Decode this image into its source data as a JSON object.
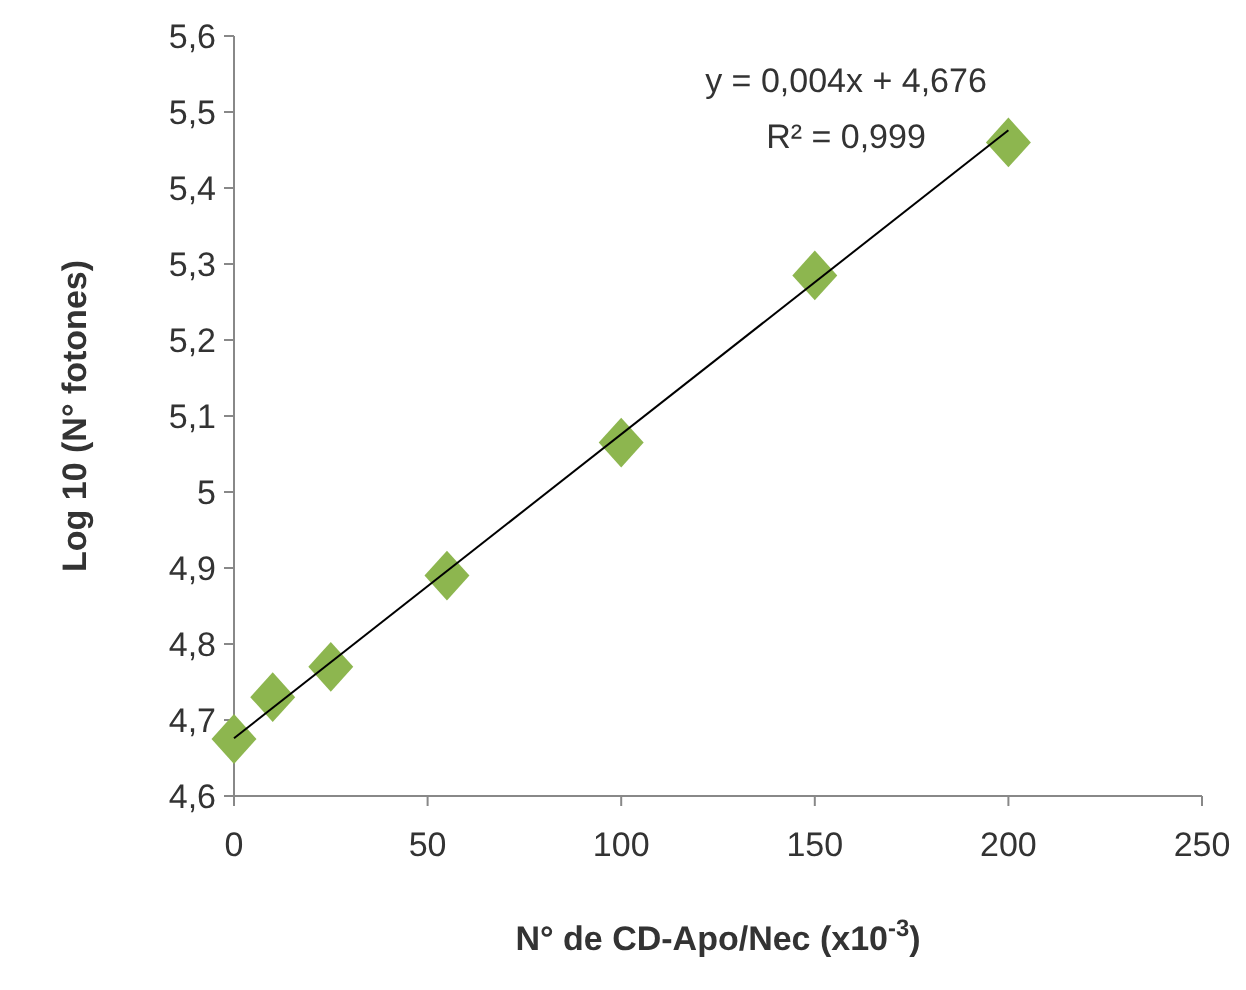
{
  "chart_data": {
    "type": "scatter",
    "xlabel": "N° de CD-Apo/Nec (x10$^{-3}$)",
    "ylabel": "Log 10 (N° fotones)",
    "x": [
      0,
      10,
      25,
      55,
      100,
      150,
      200
    ],
    "series": [
      {
        "color": "#8db64f",
        "marker": "diamond",
        "values": [
          4.675,
          4.73,
          4.77,
          4.89,
          5.065,
          5.285,
          5.46
        ]
      },
      {
        "type": "line",
        "color": "#000000",
        "x": [
          0,
          200
        ],
        "values": [
          4.676,
          5.476
        ]
      }
    ],
    "xlim": [
      0,
      250
    ],
    "xticks": [
      0,
      50,
      100,
      150,
      200,
      250
    ],
    "ylim": [
      4.6,
      5.6
    ],
    "yticks": [
      {
        "value": 4.6,
        "label": "4,6"
      },
      {
        "value": 4.7,
        "label": "4,7"
      },
      {
        "value": 4.8,
        "label": "4,8"
      },
      {
        "value": 4.9,
        "label": "4,9"
      },
      5,
      {
        "value": 5.1,
        "label": "5,1"
      },
      {
        "value": 5.2,
        "label": "5,2"
      },
      {
        "value": 5.3,
        "label": "5,3"
      },
      {
        "value": 5.4,
        "label": "5,4"
      },
      {
        "value": 5.5,
        "label": "5,5"
      },
      {
        "value": 5.6,
        "label": "5,6"
      }
    ],
    "annotations": [
      "y = 0,004x + 4,676",
      "R² = 0,999"
    ],
    "grid": false
  }
}
